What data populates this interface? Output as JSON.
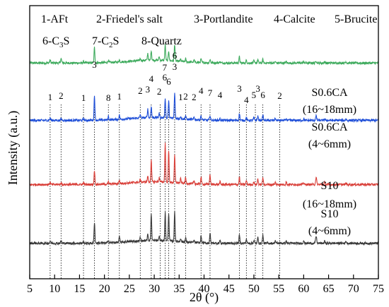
{
  "chart_data": {
    "type": "line",
    "title": "",
    "xlabel": "2θ (°)",
    "ylabel": "Intensity (a.u.)",
    "xlim": [
      5,
      75
    ],
    "x_ticks": [
      "5",
      "10",
      "15",
      "20",
      "25",
      "30",
      "35",
      "40",
      "45",
      "50",
      "55",
      "60",
      "65",
      "70",
      "75"
    ],
    "grid": false,
    "legend": [
      {
        "id": "1",
        "text": "1-AFt"
      },
      {
        "id": "2",
        "text": "2-Friedel's salt"
      },
      {
        "id": "3",
        "text": "3-Portlandite"
      },
      {
        "id": "4",
        "text": "4-Calcite"
      },
      {
        "id": "5",
        "text": "5-Brucite"
      },
      {
        "id": "6",
        "text": "6-C",
        "sub": "3",
        "suffix": "S"
      },
      {
        "id": "7",
        "text": "7-C",
        "sub": "2",
        "suffix": "S"
      },
      {
        "id": "8",
        "text": "8-Quartz"
      }
    ],
    "reference_lines_2theta": [
      9.1,
      11.3,
      15.8,
      18.0,
      20.8,
      23.0,
      27.2,
      29.4,
      31.2,
      32.2,
      32.9,
      34.1,
      36.3,
      39.4,
      41.2,
      47.1,
      48.5,
      50.3,
      51.8,
      55.2
    ],
    "peak_labels": [
      {
        "x": 9.1,
        "label": "1"
      },
      {
        "x": 11.3,
        "label": "2"
      },
      {
        "x": 15.8,
        "label": "1"
      },
      {
        "x": 18.0,
        "label": "3"
      },
      {
        "x": 20.8,
        "label": "8"
      },
      {
        "x": 23.0,
        "label": "1"
      },
      {
        "x": 27.2,
        "label": "2"
      },
      {
        "x": 28.7,
        "label": "3"
      },
      {
        "x": 29.4,
        "label": "4"
      },
      {
        "x": 31.0,
        "label": "2"
      },
      {
        "x": 32.1,
        "label": "6"
      },
      {
        "x": 32.1,
        "label": "7"
      },
      {
        "x": 32.9,
        "label": "6"
      },
      {
        "x": 34.1,
        "label": "3"
      },
      {
        "x": 34.1,
        "label": "6"
      },
      {
        "x": 35.3,
        "label": "1"
      },
      {
        "x": 36.3,
        "label": "2"
      },
      {
        "x": 38.0,
        "label": "2"
      },
      {
        "x": 39.4,
        "label": "4"
      },
      {
        "x": 41.2,
        "label": "7"
      },
      {
        "x": 43.2,
        "label": "4"
      },
      {
        "x": 47.1,
        "label": "3"
      },
      {
        "x": 48.5,
        "label": "4"
      },
      {
        "x": 50.0,
        "label": "5"
      },
      {
        "x": 50.8,
        "label": "3"
      },
      {
        "x": 51.8,
        "label": "6"
      },
      {
        "x": 55.2,
        "label": "2"
      }
    ],
    "peaks": [
      {
        "x": 9.1,
        "w": 0.15,
        "h": [
          4,
          3,
          3,
          3
        ]
      },
      {
        "x": 11.3,
        "w": 0.15,
        "h": [
          6,
          2,
          2,
          3
        ]
      },
      {
        "x": 15.8,
        "w": 0.15,
        "h": [
          2,
          2,
          2,
          2
        ]
      },
      {
        "x": 18.0,
        "w": 0.12,
        "h": [
          22,
          35,
          20,
          30
        ]
      },
      {
        "x": 20.8,
        "w": 0.12,
        "h": [
          3,
          5,
          3,
          4
        ]
      },
      {
        "x": 23.0,
        "w": 0.12,
        "h": [
          3,
          6,
          5,
          8
        ]
      },
      {
        "x": 27.2,
        "w": 0.12,
        "h": [
          3,
          5,
          4,
          5
        ]
      },
      {
        "x": 28.7,
        "w": 0.12,
        "h": [
          10,
          12,
          8,
          10
        ]
      },
      {
        "x": 29.4,
        "w": 0.12,
        "h": [
          14,
          16,
          30,
          38
        ]
      },
      {
        "x": 31.0,
        "w": 0.12,
        "h": [
          5,
          6,
          6,
          6
        ]
      },
      {
        "x": 32.2,
        "w": 0.12,
        "h": [
          22,
          28,
          55,
          40
        ]
      },
      {
        "x": 32.9,
        "w": 0.12,
        "h": [
          14,
          24,
          45,
          40
        ]
      },
      {
        "x": 34.1,
        "w": 0.12,
        "h": [
          24,
          36,
          38,
          42
        ]
      },
      {
        "x": 35.3,
        "w": 0.12,
        "h": [
          3,
          4,
          6,
          5
        ]
      },
      {
        "x": 36.3,
        "w": 0.12,
        "h": [
          4,
          5,
          8,
          6
        ]
      },
      {
        "x": 38.0,
        "w": 0.12,
        "h": [
          3,
          3,
          4,
          3
        ]
      },
      {
        "x": 39.4,
        "w": 0.12,
        "h": [
          5,
          6,
          10,
          10
        ]
      },
      {
        "x": 41.2,
        "w": 0.12,
        "h": [
          5,
          7,
          14,
          14
        ]
      },
      {
        "x": 43.2,
        "w": 0.12,
        "h": [
          2,
          2,
          4,
          4
        ]
      },
      {
        "x": 47.1,
        "w": 0.12,
        "h": [
          9,
          10,
          10,
          12
        ]
      },
      {
        "x": 48.5,
        "w": 0.12,
        "h": [
          4,
          4,
          6,
          6
        ]
      },
      {
        "x": 50.0,
        "w": 0.12,
        "h": [
          3,
          4,
          4,
          4
        ]
      },
      {
        "x": 50.8,
        "w": 0.12,
        "h": [
          5,
          6,
          8,
          8
        ]
      },
      {
        "x": 51.8,
        "w": 0.12,
        "h": [
          5,
          8,
          10,
          12
        ]
      },
      {
        "x": 54.3,
        "w": 0.12,
        "h": [
          2,
          3,
          3,
          4
        ]
      },
      {
        "x": 56.5,
        "w": 0.12,
        "h": [
          2,
          2,
          4,
          3
        ]
      },
      {
        "x": 60.0,
        "w": 0.12,
        "h": [
          2,
          2,
          3,
          4
        ]
      },
      {
        "x": 62.5,
        "w": 0.15,
        "h": [
          3,
          6,
          10,
          10
        ]
      },
      {
        "x": 64.2,
        "w": 0.12,
        "h": [
          2,
          2,
          3,
          3
        ]
      },
      {
        "x": 68.5,
        "w": 0.12,
        "h": [
          2,
          2,
          2,
          3
        ]
      }
    ],
    "series": [
      {
        "name_lines": [
          "S0.6CA",
          "(16~18mm)"
        ],
        "color": "#3daa5c",
        "baseline": 0.79
      },
      {
        "name_lines": [
          "S0.6CA",
          "(4~6mm)"
        ],
        "color": "#1f4fd8",
        "baseline": 0.58
      },
      {
        "name_lines": [
          "S10",
          "(16~18mm)"
        ],
        "color": "#d9403a",
        "baseline": 0.345
      },
      {
        "name_lines": [
          "S10",
          "(4~6mm)"
        ],
        "color": "#3a3a3a",
        "baseline": 0.13
      }
    ]
  }
}
